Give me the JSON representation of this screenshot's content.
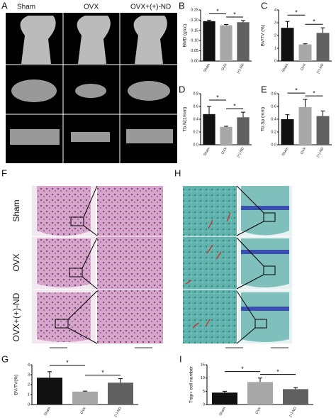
{
  "figure": {
    "letters": [
      "A",
      "B",
      "C",
      "D",
      "E",
      "F",
      "H",
      "G",
      "I"
    ],
    "groups_A": [
      "Sham",
      "OVX",
      "OVX+(+)-ND"
    ],
    "groups_F": [
      "Sham",
      "OVX",
      "OVX+(+)-ND"
    ]
  },
  "chart_data": [
    {
      "type": "bar",
      "y_label": "BMD (g/cc)",
      "categories": [
        "Sham",
        "OVX",
        "(+)-ND"
      ],
      "values": [
        0.195,
        0.175,
        0.19
      ],
      "errors": [
        0.005,
        0.004,
        0.008
      ],
      "colors": [
        "#111111",
        "#a8a8a8",
        "#606060"
      ],
      "ylim": [
        0,
        0.25
      ],
      "yticks": [
        {
          "value": 0,
          "label": "0.00"
        },
        {
          "value": 0.05,
          "label": "0.05"
        },
        {
          "value": 0.1,
          "label": "0.10"
        },
        {
          "value": 0.15,
          "label": "0.15"
        },
        {
          "value": 0.2,
          "label": "0.20"
        },
        {
          "value": 0.25,
          "label": "0.25"
        }
      ],
      "annotations": [
        "*",
        "*"
      ]
    },
    {
      "type": "bar",
      "y_label": "BV/TV (%)",
      "categories": [
        "Sham",
        "OVX",
        "(+)-ND"
      ],
      "values": [
        2.6,
        1.3,
        2.2
      ],
      "errors": [
        0.5,
        0.05,
        0.4
      ],
      "colors": [
        "#111111",
        "#a8a8a8",
        "#606060"
      ],
      "ylim": [
        0,
        4
      ],
      "yticks": [
        0,
        1,
        2,
        3,
        4
      ],
      "annotations": [
        "*",
        "*"
      ]
    },
    {
      "type": "bar",
      "y_label": "Tb.N(1/mm)",
      "categories": [
        "Sham",
        "OVX",
        "(+)-ND"
      ],
      "values": [
        0.48,
        0.28,
        0.43
      ],
      "errors": [
        0.12,
        0.01,
        0.08
      ],
      "colors": [
        "#111111",
        "#a8a8a8",
        "#606060"
      ],
      "ylim": [
        0,
        0.8
      ],
      "yticks": [
        {
          "value": 0,
          "label": "0.0"
        },
        {
          "value": 0.2,
          "label": "0.2"
        },
        {
          "value": 0.4,
          "label": "0.4"
        },
        {
          "value": 0.6,
          "label": "0.6"
        },
        {
          "value": 0.8,
          "label": "0.8"
        }
      ],
      "annotations": [
        "*",
        "*"
      ]
    },
    {
      "type": "bar",
      "y_label": "Tb.Sp (mm)",
      "categories": [
        "Sham",
        "OVX",
        "(+)-ND"
      ],
      "values": [
        0.4,
        0.59,
        0.45
      ],
      "errors": [
        0.07,
        0.12,
        0.08
      ],
      "colors": [
        "#111111",
        "#a8a8a8",
        "#606060"
      ],
      "ylim": [
        0,
        0.8
      ],
      "yticks": [
        {
          "value": 0,
          "label": "0.0"
        },
        {
          "value": 0.2,
          "label": "0.2"
        },
        {
          "value": 0.4,
          "label": "0.4"
        },
        {
          "value": 0.6,
          "label": "0.6"
        },
        {
          "value": 0.8,
          "label": "0.8"
        }
      ],
      "annotations": [
        "*",
        "*"
      ]
    },
    {
      "type": "bar",
      "y_label": "BV/TV(%)",
      "categories": [
        "Sham",
        "OVX",
        "(+)-ND"
      ],
      "values": [
        2.7,
        1.3,
        2.2
      ],
      "errors": [
        0.6,
        0.05,
        0.4
      ],
      "colors": [
        "#111111",
        "#a8a8a8",
        "#606060"
      ],
      "ylim": [
        0,
        4
      ],
      "yticks": [
        0,
        1,
        2,
        3,
        4
      ],
      "annotations": [
        "*",
        "*"
      ]
    },
    {
      "type": "bar",
      "y_label": "Trap+ cell number",
      "categories": [
        "Sham",
        "OVX",
        "(+)-ND"
      ],
      "values": [
        4.5,
        8.5,
        5.8
      ],
      "errors": [
        0.5,
        1.5,
        0.6
      ],
      "colors": [
        "#111111",
        "#a8a8a8",
        "#606060"
      ],
      "ylim": [
        0,
        15
      ],
      "yticks": [
        0,
        5,
        10,
        15
      ],
      "annotations": [
        "*",
        "*"
      ]
    }
  ]
}
